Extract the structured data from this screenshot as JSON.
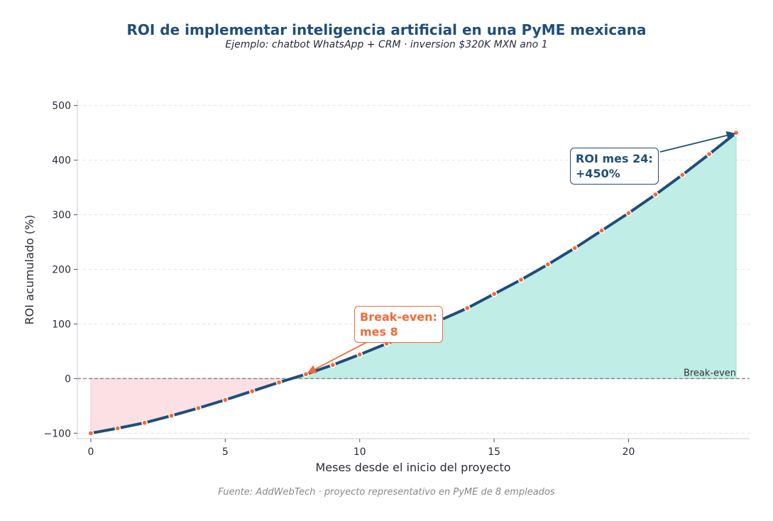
{
  "title": "ROI de implementar inteligencia artificial en una PyME mexicana",
  "subtitle": "Ejemplo: chatbot WhatsApp + CRM · inversion $320K MXN ano 1",
  "source": "Fuente: AddWebTech · proyecto representativo en PyME de 8 empleados",
  "colors": {
    "line": "#1f4e79",
    "marker": "#f26b38",
    "positive_fill": "#c0ede6",
    "negative_fill": "#fde0e3",
    "annotation_breakeven": "#f26b38",
    "annotation_roi": "#1f4e79"
  },
  "chart_data": {
    "type": "line",
    "xlabel": "Meses desde el inicio del proyecto",
    "ylabel": "ROI acumulado (%)",
    "xlim": [
      -0.5,
      24.5
    ],
    "ylim": [
      -110,
      510
    ],
    "xticks": [
      0,
      5,
      10,
      15,
      20
    ],
    "yticks": [
      -100,
      0,
      100,
      200,
      300,
      400,
      500
    ],
    "ytick_labels": [
      "−100",
      "0",
      "100",
      "200",
      "300",
      "400",
      "500"
    ],
    "grid": "horizontal dashed",
    "series": [
      {
        "x": [
          0,
          1,
          2,
          3,
          4,
          5,
          6,
          7,
          8,
          9,
          10,
          11,
          12,
          13,
          14,
          15,
          16,
          17,
          18,
          19,
          20,
          21,
          22,
          23,
          24
        ],
        "y": [
          -100,
          -91,
          -81,
          -68,
          -54,
          -39,
          -23,
          -7,
          8,
          25,
          44,
          64,
          85,
          107,
          129,
          155,
          181,
          209,
          239,
          271,
          303,
          337,
          373,
          411,
          450
        ]
      }
    ],
    "reference_line": {
      "y": 0,
      "label": "Break-even"
    },
    "annotations": [
      {
        "text": "Break-even:\nmes 8",
        "x": 8,
        "y": 8
      },
      {
        "text": "ROI mes 24:\n+450%",
        "x": 24,
        "y": 450
      }
    ]
  }
}
